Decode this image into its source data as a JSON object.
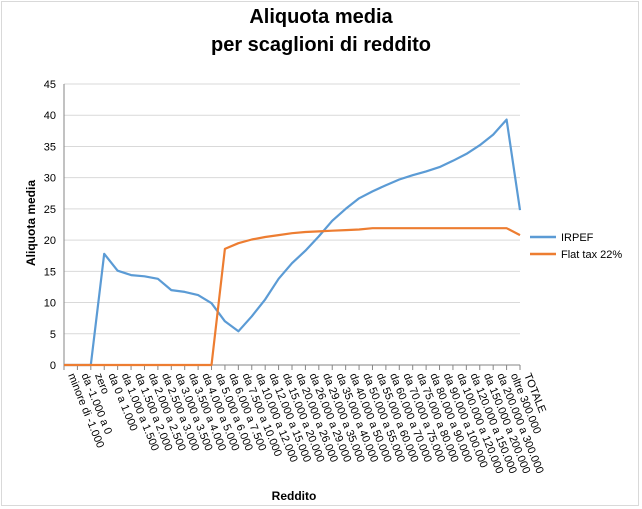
{
  "chart_data": {
    "type": "line",
    "title_line1": "Aliquota media",
    "title_line2": "per scaglioni di reddito",
    "xlabel": "Reddito",
    "ylabel": "Aliquota media",
    "ylim": [
      0,
      45
    ],
    "yticks": [
      0,
      5,
      10,
      15,
      20,
      25,
      30,
      35,
      40,
      45
    ],
    "grid": true,
    "legend_position": "right",
    "categories": [
      "minore di -1.000",
      "da -1.000 a 0",
      "zero",
      "da 0 a 1.000",
      "da 1.000 a 1.500",
      "da 1.500 a 2.000",
      "da 2.000 a 2.500",
      "da 2.500 a 3.000",
      "da 3.000 a 3.500",
      "da 3.500 a 4.000",
      "da 4.000 a 5.000",
      "da 5.000 a 6.000",
      "da 6.000 a 7.500",
      "da 7.500 a 10.000",
      "da 10.000 a 12.000",
      "da 12.000 a 15.000",
      "da 15.000 a 20.000",
      "da 20.000 a 26.000",
      "da 26.000 a 29.000",
      "da 29.000 a 35.000",
      "da 35.000 a 40.000",
      "da 40.000 a 50.000",
      "da 50.000 a 55.000",
      "da 55.000 a 60.000",
      "da 60.000 a 70.000",
      "da 70.000 a 75.000",
      "da 75.000 a 80.000",
      "da 80.000 a 90.000",
      "da 90.000 a 100.000",
      "da 100.000 a 120.000",
      "da 120.000 a 150.000",
      "da 150.000 a 200.000",
      "da 200.000 a 300.000",
      "oltre 300.000",
      "TOTALE"
    ],
    "series": [
      {
        "name": "IRPEF",
        "color": "#5b9bd5",
        "values": [
          0,
          0,
          0,
          17.8,
          15.1,
          14.4,
          14.2,
          13.8,
          12.0,
          11.7,
          11.2,
          9.9,
          7.0,
          5.4,
          7.8,
          10.5,
          13.8,
          16.3,
          18.3,
          20.6,
          23.1,
          25.0,
          26.7,
          27.8,
          28.8,
          29.7,
          30.4,
          31.0,
          31.7,
          32.7,
          33.8,
          35.2,
          36.9,
          39.3,
          24.8
        ]
      },
      {
        "name": "Flat tax 22%",
        "color": "#ed7d31",
        "values": [
          0,
          0,
          0,
          0,
          0,
          0,
          0,
          0,
          0,
          0,
          0,
          0,
          18.6,
          19.5,
          20.1,
          20.5,
          20.8,
          21.1,
          21.3,
          21.4,
          21.5,
          21.6,
          21.7,
          21.9,
          21.9,
          21.9,
          21.9,
          21.9,
          21.9,
          21.9,
          21.9,
          21.9,
          21.9,
          21.9,
          20.8
        ]
      }
    ]
  }
}
